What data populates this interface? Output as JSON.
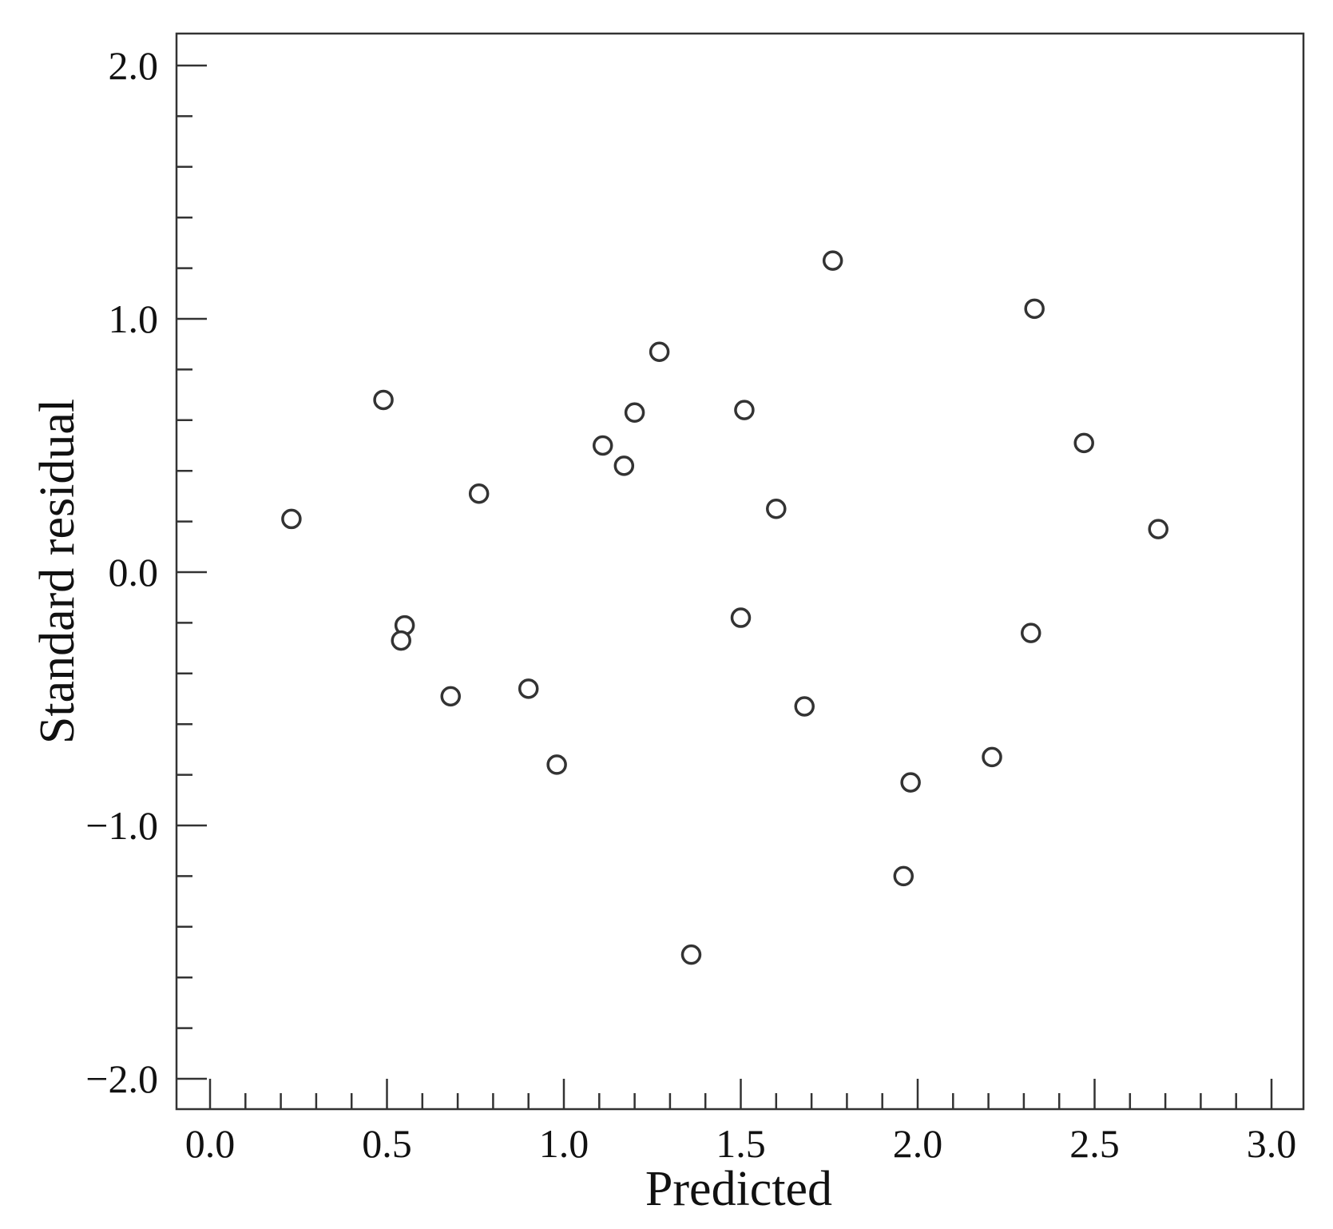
{
  "chart_data": {
    "type": "scatter",
    "xlabel": "Predicted",
    "ylabel": "Standard residual",
    "xlim": [
      0.0,
      3.0
    ],
    "ylim": [
      -2.0,
      2.0
    ],
    "x_ticks": [
      "0.0",
      "0.5",
      "1.0",
      "1.5",
      "2.0",
      "2.5",
      "3.0"
    ],
    "y_ticks": [
      "2.0",
      "1.0",
      "0.0",
      "−1.0",
      "−2.0"
    ],
    "x_minor_step": 0.1,
    "y_minor_step": 0.2,
    "grid": false,
    "legend": "none",
    "marker": "open-circle",
    "points": [
      {
        "x": 0.23,
        "y": 0.21
      },
      {
        "x": 0.49,
        "y": 0.68
      },
      {
        "x": 0.55,
        "y": -0.21
      },
      {
        "x": 0.54,
        "y": -0.27
      },
      {
        "x": 0.68,
        "y": -0.49
      },
      {
        "x": 0.76,
        "y": 0.31
      },
      {
        "x": 0.9,
        "y": -0.46
      },
      {
        "x": 0.98,
        "y": -0.76
      },
      {
        "x": 1.11,
        "y": 0.5
      },
      {
        "x": 1.17,
        "y": 0.42
      },
      {
        "x": 1.2,
        "y": 0.63
      },
      {
        "x": 1.27,
        "y": 0.87
      },
      {
        "x": 1.36,
        "y": -1.51
      },
      {
        "x": 1.5,
        "y": -0.18
      },
      {
        "x": 1.51,
        "y": 0.64
      },
      {
        "x": 1.6,
        "y": 0.25
      },
      {
        "x": 1.68,
        "y": -0.53
      },
      {
        "x": 1.76,
        "y": 1.23
      },
      {
        "x": 1.96,
        "y": -1.2
      },
      {
        "x": 1.98,
        "y": -0.83
      },
      {
        "x": 2.21,
        "y": -0.73
      },
      {
        "x": 2.32,
        "y": -0.24
      },
      {
        "x": 2.33,
        "y": 1.04
      },
      {
        "x": 2.47,
        "y": 0.51
      },
      {
        "x": 2.68,
        "y": 0.17
      }
    ]
  }
}
